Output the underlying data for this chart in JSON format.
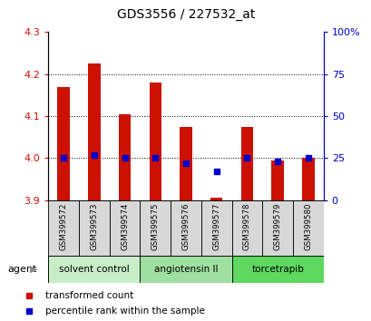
{
  "title": "GDS3556 / 227532_at",
  "samples": [
    "GSM399572",
    "GSM399573",
    "GSM399574",
    "GSM399575",
    "GSM399576",
    "GSM399577",
    "GSM399578",
    "GSM399579",
    "GSM399580"
  ],
  "transformed_count": [
    4.17,
    4.225,
    4.105,
    4.18,
    4.075,
    3.905,
    4.075,
    3.995,
    4.0
  ],
  "percentile_rank": [
    25,
    27,
    25,
    25,
    22,
    17,
    25,
    23,
    25
  ],
  "ylim": [
    3.9,
    4.3
  ],
  "y2lim": [
    0,
    100
  ],
  "yticks": [
    3.9,
    4.0,
    4.1,
    4.2,
    4.3
  ],
  "y2ticks": [
    0,
    25,
    50,
    75,
    100
  ],
  "y2ticklabels": [
    "0",
    "25",
    "50",
    "75",
    "100%"
  ],
  "bar_color": "#cc1100",
  "dot_color": "#0000cc",
  "grid_color": "#000000",
  "agent_groups": [
    {
      "label": "solvent control",
      "start": 0,
      "end": 3
    },
    {
      "label": "angiotensin II",
      "start": 3,
      "end": 6
    },
    {
      "label": "torcetrapib",
      "start": 6,
      "end": 9
    }
  ],
  "group_colors": [
    "#c8eec8",
    "#a0e0a0",
    "#5ed85e"
  ],
  "bar_width": 0.4,
  "legend_items": [
    {
      "label": "transformed count",
      "color": "#cc1100"
    },
    {
      "label": "percentile rank within the sample",
      "color": "#0000cc"
    }
  ]
}
